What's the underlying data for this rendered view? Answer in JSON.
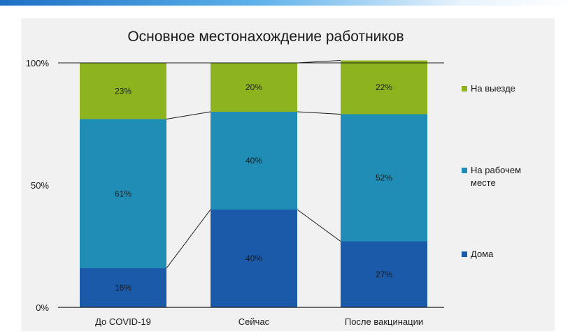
{
  "chart_data": {
    "type": "bar",
    "stacked": true,
    "percent_stacked": true,
    "title": "Основное местонахождение работников",
    "xlabel": "",
    "ylabel": "",
    "ylim": [
      0,
      100
    ],
    "y_ticks": [
      "0%",
      "50%",
      "100%"
    ],
    "categories": [
      "До COVID-19",
      "Сейчас",
      "После вакцинации"
    ],
    "series": [
      {
        "name": "Дома",
        "values": [
          16,
          40,
          27
        ],
        "labels": [
          "16%",
          "40%",
          "27%"
        ],
        "color": "#1b5aa8"
      },
      {
        "name": "На рабочем месте",
        "values": [
          61,
          40,
          52
        ],
        "labels": [
          "61%",
          "40%",
          "52%"
        ],
        "color": "#1f8db5"
      },
      {
        "name": "На выезде",
        "values": [
          23,
          20,
          22
        ],
        "labels": [
          "23%",
          "20%",
          "22%"
        ],
        "color": "#8db41f"
      }
    ],
    "legend": {
      "position": "right",
      "items": [
        {
          "lines": [
            "На выезде"
          ],
          "color": "#8db41f"
        },
        {
          "lines": [
            "На рабочем",
            "месте"
          ],
          "color": "#1f8db5"
        },
        {
          "lines": [
            "Дома"
          ],
          "color": "#1b5aa8"
        }
      ]
    },
    "grid": false
  }
}
